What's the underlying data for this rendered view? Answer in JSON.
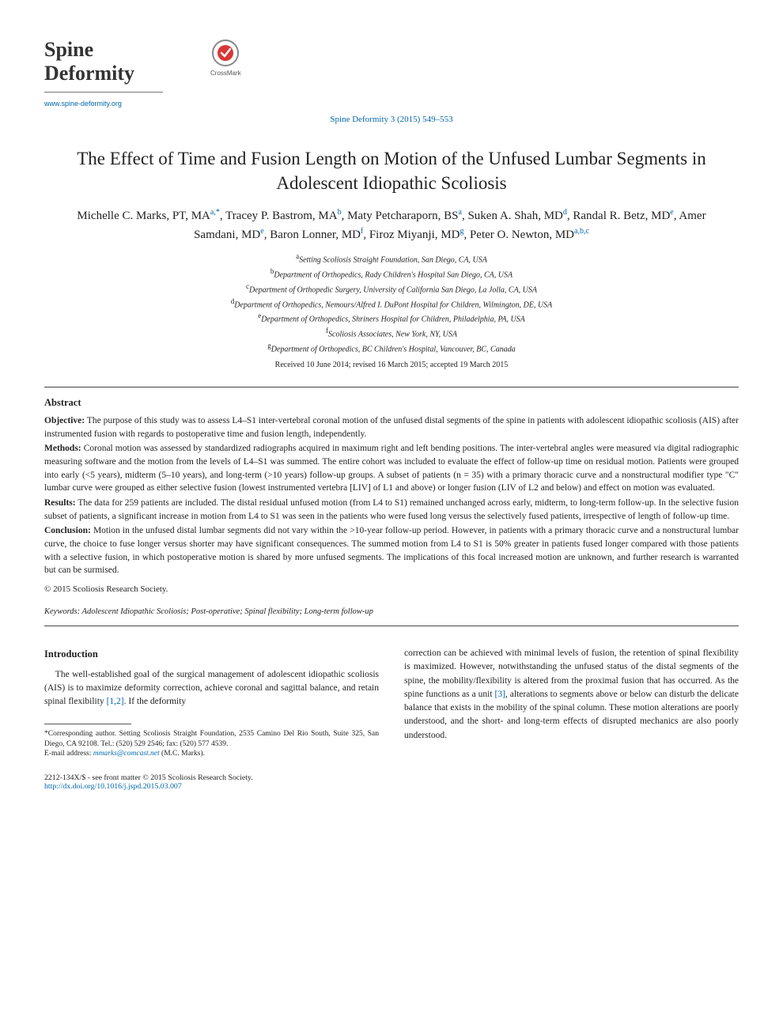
{
  "journal": {
    "name_line1": "Spine",
    "name_line2": "Deformity",
    "url": "www.spine-deformity.org"
  },
  "crossmark_label": "CrossMark",
  "citation": "Spine Deformity 3 (2015) 549–553",
  "title": "The Effect of Time and Fusion Length on Motion of the Unfused Lumbar Segments in Adolescent Idiopathic Scoliosis",
  "authors_html": "Michelle C. Marks, PT, MA<sup>a,*</sup>, Tracey P. Bastrom, MA<sup>b</sup>, Maty Petcharaporn, BS<sup>a</sup>, Suken A. Shah, MD<sup>d</sup>, Randal R. Betz, MD<sup>e</sup>, Amer Samdani, MD<sup>e</sup>, Baron Lonner, MD<sup>f</sup>, Firoz Miyanji, MD<sup>g</sup>, Peter O. Newton, MD<sup>a,b,c</sup>",
  "affiliations": [
    {
      "label": "a",
      "text": "Setting Scoliosis Straight Foundation, San Diego, CA, USA"
    },
    {
      "label": "b",
      "text": "Department of Orthopedics, Rady Children's Hospital San Diego, CA, USA"
    },
    {
      "label": "c",
      "text": "Department of Orthopedic Surgery, University of California San Diego, La Jolla, CA, USA"
    },
    {
      "label": "d",
      "text": "Department of Orthopedics, Nemours/Alfred I. DuPont Hospital for Children, Wilmington, DE, USA"
    },
    {
      "label": "e",
      "text": "Department of Orthopedics, Shriners Hospital for Children, Philadelphia, PA, USA"
    },
    {
      "label": "f",
      "text": "Scoliosis Associates, New York, NY, USA"
    },
    {
      "label": "g",
      "text": "Department of Orthopedics, BC Children's Hospital, Vancouver, BC, Canada"
    }
  ],
  "received": "Received 10 June 2014; revised 16 March 2015; accepted 19 March 2015",
  "abstract": {
    "heading": "Abstract",
    "objective_label": "Objective:",
    "objective": "The purpose of this study was to assess L4–S1 inter-vertebral coronal motion of the unfused distal segments of the spine in patients with adolescent idiopathic scoliosis (AIS) after instrumented fusion with regards to postoperative time and fusion length, independently.",
    "methods_label": "Methods:",
    "methods": "Coronal motion was assessed by standardized radiographs acquired in maximum right and left bending positions. The inter-vertebral angles were measured via digital radiographic measuring software and the motion from the levels of L4–S1 was summed. The entire cohort was included to evaluate the effect of follow-up time on residual motion. Patients were grouped into early (<5 years), midterm (5–10 years), and long-term (>10 years) follow-up groups. A subset of patients (n = 35) with a primary thoracic curve and a nonstructural modifier type \"C\" lumbar curve were grouped as either selective fusion (lowest instrumented vertebra [LIV] of L1 and above) or longer fusion (LIV of L2 and below) and effect on motion was evaluated.",
    "results_label": "Results:",
    "results": "The data for 259 patients are included. The distal residual unfused motion (from L4 to S1) remained unchanged across early, midterm, to long-term follow-up. In the selective fusion subset of patients, a significant increase in motion from L4 to S1 was seen in the patients who were fused long versus the selectively fused patients, irrespective of length of follow-up time.",
    "conclusion_label": "Conclusion:",
    "conclusion": "Motion in the unfused distal lumbar segments did not vary within the >10-year follow-up period. However, in patients with a primary thoracic curve and a nonstructural lumbar curve, the choice to fuse longer versus shorter may have significant consequences. The summed motion from L4 to S1 is 50% greater in patients fused longer compared with those patients with a selective fusion, in which postoperative motion is shared by more unfused segments. The implications of this focal increased motion are unknown, and further research is warranted but can be surmised.",
    "copyright": "© 2015 Scoliosis Research Society."
  },
  "keywords": {
    "label": "Keywords:",
    "text": "Adolescent Idiopathic Scoliosis; Post-operative; Spinal flexibility; Long-term follow-up"
  },
  "body": {
    "section_title": "Introduction",
    "col1_p1_a": "The well-established goal of the surgical management of adolescent idiopathic scoliosis (AIS) is to maximize deformity correction, achieve coronal and sagittal balance, and retain spinal flexibility ",
    "col1_ref": "[1,2]",
    "col1_p1_b": ". If the deformity",
    "col2_p1_a": "correction can be achieved with minimal levels of fusion, the retention of spinal flexibility is maximized. However, notwithstanding the unfused status of the distal segments of the spine, the mobility/flexibility is altered from the proximal fusion that has occurred. As the spine functions as a unit ",
    "col2_ref": "[3]",
    "col2_p1_b": ", alterations to segments above or below can disturb the delicate balance that exists in the mobility of the spinal column. These motion alterations are poorly understood, and the short- and long-term effects of disrupted mechanics are also poorly understood."
  },
  "footnote": {
    "corresponding": "*Corresponding author. Setting Scoliosis Straight Foundation, 2535 Camino Del Rio South, Suite 325, San Diego, CA 92108. Tel.: (520) 529 2546; fax: (520) 577 4539.",
    "email_label": "E-mail address:",
    "email": "mmarks@comcast.net",
    "email_suffix": "(M.C. Marks)."
  },
  "bottom": {
    "issn": "2212-134X/$ - see front matter © 2015 Scoliosis Research Society.",
    "doi": "http://dx.doi.org/10.1016/j.jspd.2015.03.007"
  },
  "colors": {
    "link": "#0066aa",
    "text": "#222222",
    "rule": "#444444"
  }
}
